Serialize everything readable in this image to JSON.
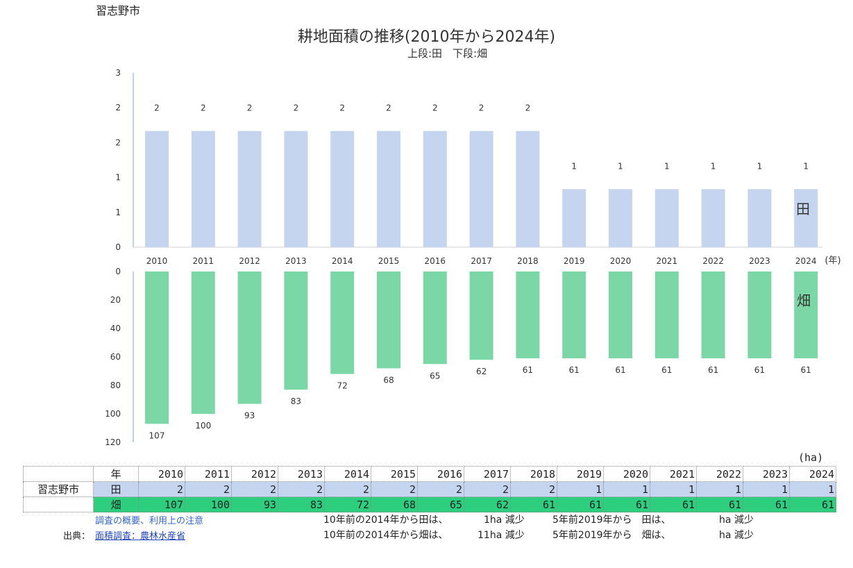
{
  "city": "習志野市",
  "title": "耕地面積の推移(2010年から2024年)",
  "subtitle": "上段:田　下段:畑",
  "chart_data": {
    "type": "bar",
    "categories": [
      "2010",
      "2011",
      "2012",
      "2013",
      "2014",
      "2015",
      "2016",
      "2017",
      "2018",
      "2019",
      "2020",
      "2021",
      "2022",
      "2023",
      "2024"
    ],
    "x_unit": "(年)",
    "series": [
      {
        "name": "田",
        "values": [
          2,
          2,
          2,
          2,
          2,
          2,
          2,
          2,
          2,
          1,
          1,
          1,
          1,
          1,
          1
        ],
        "color": "#c5d5ef",
        "ylim": [
          0,
          3
        ],
        "yticks": [
          "0",
          "1",
          "1",
          "2",
          "2",
          "3"
        ],
        "data_labels": [
          "2",
          "2",
          "2",
          "2",
          "2",
          "2",
          "2",
          "2",
          "2",
          "1",
          "1",
          "1",
          "1",
          "1",
          "1"
        ]
      },
      {
        "name": "畑",
        "values": [
          107,
          100,
          93,
          83,
          72,
          68,
          65,
          62,
          61,
          61,
          61,
          61,
          61,
          61,
          61
        ],
        "color": "#7cd7a7",
        "ylim": [
          0,
          120
        ],
        "yticks": [
          "0",
          "20",
          "40",
          "60",
          "80",
          "100",
          "120"
        ],
        "inverted": true
      }
    ]
  },
  "table": {
    "unit": "(ha)",
    "year_header": "年",
    "city_label": "習志野市",
    "rows": [
      {
        "label": "田",
        "values": [
          "2",
          "2",
          "2",
          "2",
          "2",
          "2",
          "2",
          "2",
          "2",
          "1",
          "1",
          "1",
          "1",
          "1",
          "1"
        ]
      },
      {
        "label": "畑",
        "values": [
          "107",
          "100",
          "93",
          "83",
          "72",
          "68",
          "65",
          "62",
          "61",
          "61",
          "61",
          "61",
          "61",
          "61",
          "61"
        ]
      }
    ]
  },
  "footer": {
    "survey_note_link": "調査の概要、利用上の注意",
    "source_label": "出典：",
    "source_link": "面積調査：農林水産省",
    "line1_a": "10年前の2014年から田は、",
    "line1_b": "1ha 減少",
    "line1_c": "5年前2019年から　田は、",
    "line1_d": "ha 減少",
    "line2_a": "10年前の2014年から畑は、",
    "line2_b": "11ha 減少",
    "line2_c": "5年前2019年から　畑は、",
    "line2_d": "ha 減少"
  }
}
